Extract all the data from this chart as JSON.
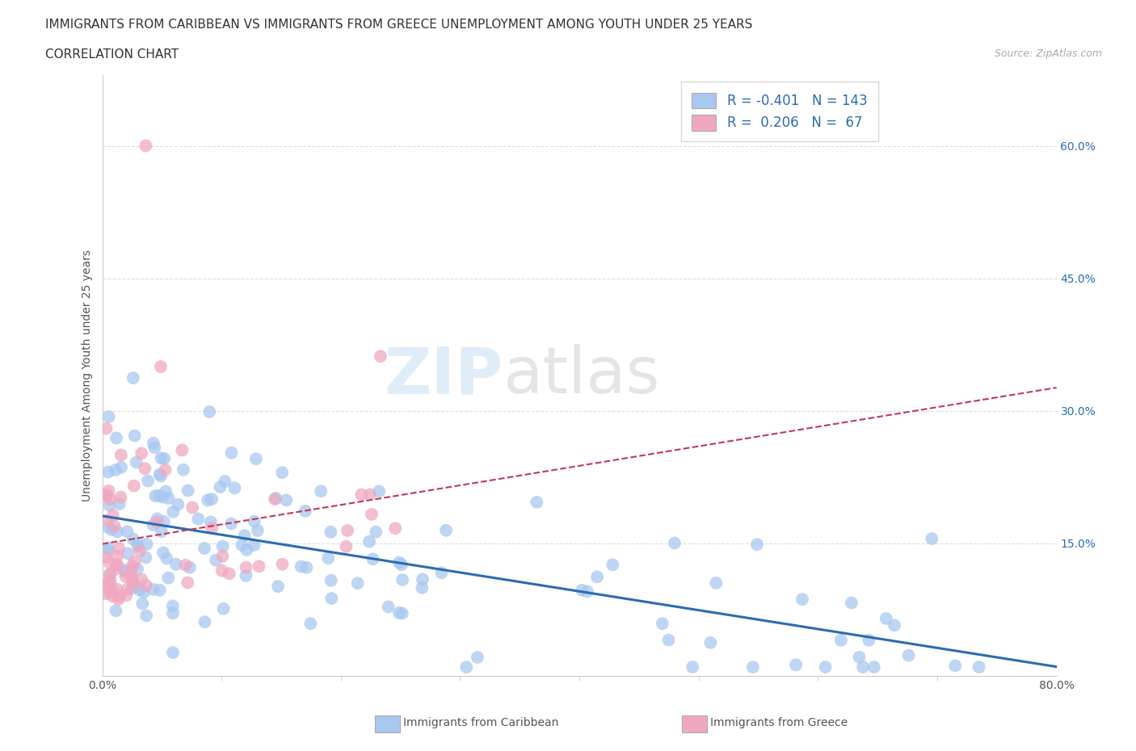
{
  "title_line1": "IMMIGRANTS FROM CARIBBEAN VS IMMIGRANTS FROM GREECE UNEMPLOYMENT AMONG YOUTH UNDER 25 YEARS",
  "title_line2": "CORRELATION CHART",
  "source_text": "Source: ZipAtlas.com",
  "ylabel": "Unemployment Among Youth under 25 years",
  "xlim": [
    0.0,
    0.8
  ],
  "ylim": [
    0.0,
    0.68
  ],
  "ytick_positions": [
    0.15,
    0.3,
    0.45,
    0.6
  ],
  "ytick_labels": [
    "15.0%",
    "30.0%",
    "45.0%",
    "60.0%"
  ],
  "caribbean_color": "#a8c8f0",
  "greece_color": "#f0a8c0",
  "caribbean_R": -0.401,
  "caribbean_N": 143,
  "greece_R": 0.206,
  "greece_N": 67,
  "regression_color_caribbean": "#2b6cb0",
  "regression_color_greece": "#c0395a",
  "watermark_zip": "ZIP",
  "watermark_atlas": "atlas",
  "legend_label_caribbean": "Immigrants from Caribbean",
  "legend_label_greece": "Immigrants from Greece"
}
